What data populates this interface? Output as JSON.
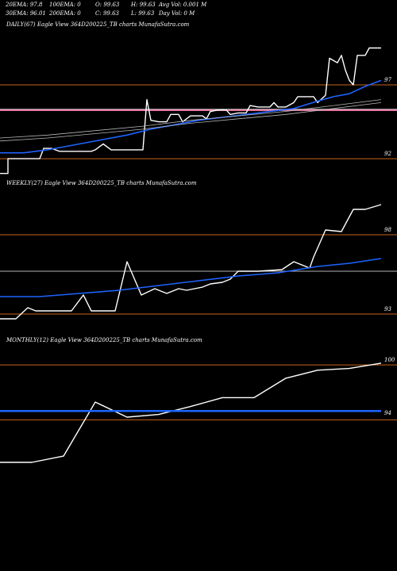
{
  "header": {
    "row1": [
      {
        "label": "20EMA: 97.8"
      },
      {
        "label": "100EMA: 0"
      },
      {
        "label": "O: 99.63"
      },
      {
        "label": "H: 99.63"
      },
      {
        "label": "Avg Vol: 0.001 M"
      }
    ],
    "row2": [
      {
        "label": "30EMA: 96.01"
      },
      {
        "label": "200EMA: 0"
      },
      {
        "label": "C: 99.63"
      },
      {
        "label": "L: 99.63"
      },
      {
        "label": "Day Vol: 0  M"
      }
    ]
  },
  "colors": {
    "background": "#000000",
    "price": "#ffffff",
    "ema": "#1e64ff",
    "orange_ref": "#c8641e",
    "pink_ref": "#ff7fb0",
    "grey_ref": "#b4b4b4"
  },
  "chart_data": [
    {
      "type": "line",
      "title": "DAILY(67) Eagle  View  364D200225_TB charts MunafaSutra.com",
      "ylim": [
        91.2,
        100.6
      ],
      "y_ticks": [
        {
          "value": 97,
          "label": "97"
        },
        {
          "value": 92,
          "label": "92"
        }
      ],
      "ref_lines": [
        {
          "value": 97.0,
          "color": "orange_ref",
          "width": 1
        },
        {
          "value": 95.3,
          "color": "pink_ref",
          "width": 2.5
        },
        {
          "value": 95.35,
          "color": "grey_ref",
          "width": 1
        },
        {
          "value": 92.0,
          "color": "orange_ref",
          "width": 1
        }
      ],
      "series": [
        {
          "color": "price",
          "points": [
            [
              0,
              91.0
            ],
            [
              10,
              91.0
            ],
            [
              10,
              92.0
            ],
            [
              20,
              92.0
            ],
            [
              30,
              92.0
            ],
            [
              40,
              92.0
            ],
            [
              50,
              92.0
            ],
            [
              55,
              92.7
            ],
            [
              65,
              92.7
            ],
            [
              75,
              92.5
            ],
            [
              90,
              92.5
            ],
            [
              105,
              92.5
            ],
            [
              115,
              92.5
            ],
            [
              120,
              92.6
            ],
            [
              130,
              93.0
            ],
            [
              140,
              92.6
            ],
            [
              150,
              92.6
            ],
            [
              160,
              92.6
            ],
            [
              170,
              92.6
            ],
            [
              180,
              92.6
            ],
            [
              185,
              96.0
            ],
            [
              190,
              94.6
            ],
            [
              200,
              94.5
            ],
            [
              210,
              94.5
            ],
            [
              215,
              95.0
            ],
            [
              225,
              95.0
            ],
            [
              230,
              94.5
            ],
            [
              240,
              94.9
            ],
            [
              250,
              94.9
            ],
            [
              255,
              94.9
            ],
            [
              260,
              94.7
            ],
            [
              265,
              95.2
            ],
            [
              275,
              95.3
            ],
            [
              285,
              95.3
            ],
            [
              290,
              95.0
            ],
            [
              300,
              95.1
            ],
            [
              310,
              95.1
            ],
            [
              315,
              95.6
            ],
            [
              325,
              95.5
            ],
            [
              340,
              95.5
            ],
            [
              345,
              95.8
            ],
            [
              350,
              95.5
            ],
            [
              360,
              95.5
            ],
            [
              370,
              95.8
            ],
            [
              375,
              96.2
            ],
            [
              385,
              96.2
            ],
            [
              395,
              96.2
            ],
            [
              400,
              95.8
            ],
            [
              410,
              96.3
            ],
            [
              415,
              98.8
            ],
            [
              425,
              98.5
            ],
            [
              430,
              99.0
            ],
            [
              435,
              98.0
            ],
            [
              440,
              97.3
            ],
            [
              445,
              97.0
            ],
            [
              450,
              99.0
            ],
            [
              455,
              99.0
            ],
            [
              460,
              99.0
            ],
            [
              465,
              99.5
            ],
            [
              470,
              99.5
            ],
            [
              480,
              99.5
            ]
          ]
        },
        {
          "color": "ema",
          "points": [
            [
              0,
              92.4
            ],
            [
              30,
              92.4
            ],
            [
              60,
              92.6
            ],
            [
              100,
              93.0
            ],
            [
              130,
              93.3
            ],
            [
              160,
              93.6
            ],
            [
              190,
              94.0
            ],
            [
              220,
              94.3
            ],
            [
              250,
              94.6
            ],
            [
              280,
              94.8
            ],
            [
              310,
              95.0
            ],
            [
              340,
              95.2
            ],
            [
              370,
              95.4
            ],
            [
              400,
              95.9
            ],
            [
              420,
              96.2
            ],
            [
              440,
              96.4
            ],
            [
              460,
              96.9
            ],
            [
              480,
              97.3
            ]
          ]
        },
        {
          "color": "grey_ref",
          "points": [
            [
              0,
              93.4
            ],
            [
              60,
              93.6
            ],
            [
              120,
              93.9
            ],
            [
              180,
              94.2
            ],
            [
              240,
              94.6
            ],
            [
              300,
              94.9
            ],
            [
              360,
              95.2
            ],
            [
              420,
              95.6
            ],
            [
              480,
              96.0
            ]
          ]
        },
        {
          "color": "grey_ref",
          "points": [
            [
              0,
              93.2
            ],
            [
              60,
              93.4
            ],
            [
              120,
              93.7
            ],
            [
              180,
              94.0
            ],
            [
              240,
              94.4
            ],
            [
              300,
              94.7
            ],
            [
              360,
              95.0
            ],
            [
              420,
              95.4
            ],
            [
              480,
              95.8
            ]
          ]
        }
      ]
    },
    {
      "type": "line",
      "title": "WEEKLY(27) Eagle  View  364D200225_TB charts MunafaSutra.com",
      "ylim": [
        92.2,
        100.8
      ],
      "y_ticks": [
        {
          "value": 98,
          "label": "98"
        },
        {
          "value": 93,
          "label": "93"
        }
      ],
      "ref_lines": [
        {
          "value": 98.0,
          "color": "orange_ref",
          "width": 1
        },
        {
          "value": 95.7,
          "color": "grey_ref",
          "width": 1
        },
        {
          "value": 93.0,
          "color": "orange_ref",
          "width": 1
        }
      ],
      "series": [
        {
          "color": "price",
          "points": [
            [
              0,
              92.7
            ],
            [
              20,
              92.7
            ],
            [
              35,
              93.4
            ],
            [
              45,
              93.2
            ],
            [
              60,
              93.2
            ],
            [
              80,
              93.2
            ],
            [
              90,
              93.2
            ],
            [
              105,
              94.2
            ],
            [
              115,
              93.2
            ],
            [
              130,
              93.2
            ],
            [
              140,
              93.2
            ],
            [
              145,
              93.2
            ],
            [
              160,
              96.3
            ],
            [
              178,
              94.2
            ],
            [
              195,
              94.6
            ],
            [
              210,
              94.3
            ],
            [
              225,
              94.6
            ],
            [
              235,
              94.5
            ],
            [
              255,
              94.7
            ],
            [
              265,
              94.9
            ],
            [
              280,
              95.0
            ],
            [
              290,
              95.2
            ],
            [
              300,
              95.7
            ],
            [
              325,
              95.7
            ],
            [
              355,
              95.8
            ],
            [
              370,
              96.3
            ],
            [
              390,
              95.9
            ],
            [
              395,
              96.6
            ],
            [
              410,
              98.3
            ],
            [
              430,
              98.2
            ],
            [
              445,
              99.6
            ],
            [
              460,
              99.6
            ],
            [
              480,
              99.9
            ]
          ]
        },
        {
          "color": "ema",
          "points": [
            [
              0,
              94.1
            ],
            [
              50,
              94.1
            ],
            [
              100,
              94.3
            ],
            [
              150,
              94.5
            ],
            [
              200,
              94.8
            ],
            [
              250,
              95.1
            ],
            [
              300,
              95.4
            ],
            [
              350,
              95.6
            ],
            [
              400,
              96.0
            ],
            [
              440,
              96.2
            ],
            [
              480,
              96.5
            ]
          ]
        }
      ]
    },
    {
      "type": "line",
      "title": "MONTHLY(12) Eagle  View  364D200225_TB charts MunafaSutra.com",
      "ylim": [
        86.4,
        101.8
      ],
      "y_ticks": [
        {
          "value": 100,
          "label": "100"
        },
        {
          "value": 94,
          "label": "94"
        }
      ],
      "ref_lines": [
        {
          "value": 100.0,
          "color": "orange_ref",
          "width": 1
        },
        {
          "value": 93.8,
          "color": "orange_ref",
          "width": 1
        }
      ],
      "series": [
        {
          "color": "price",
          "points": [
            [
              0,
              89.0
            ],
            [
              40,
              89.0
            ],
            [
              80,
              89.7
            ],
            [
              120,
              95.8
            ],
            [
              160,
              94.1
            ],
            [
              200,
              94.4
            ],
            [
              240,
              95.3
            ],
            [
              280,
              96.3
            ],
            [
              320,
              96.3
            ],
            [
              360,
              98.5
            ],
            [
              400,
              99.4
            ],
            [
              440,
              99.6
            ],
            [
              480,
              100.2
            ]
          ]
        },
        {
          "color": "ema",
          "points": [
            [
              0,
              94.8
            ],
            [
              480,
              94.8
            ]
          ],
          "width": 2.5
        }
      ]
    }
  ]
}
